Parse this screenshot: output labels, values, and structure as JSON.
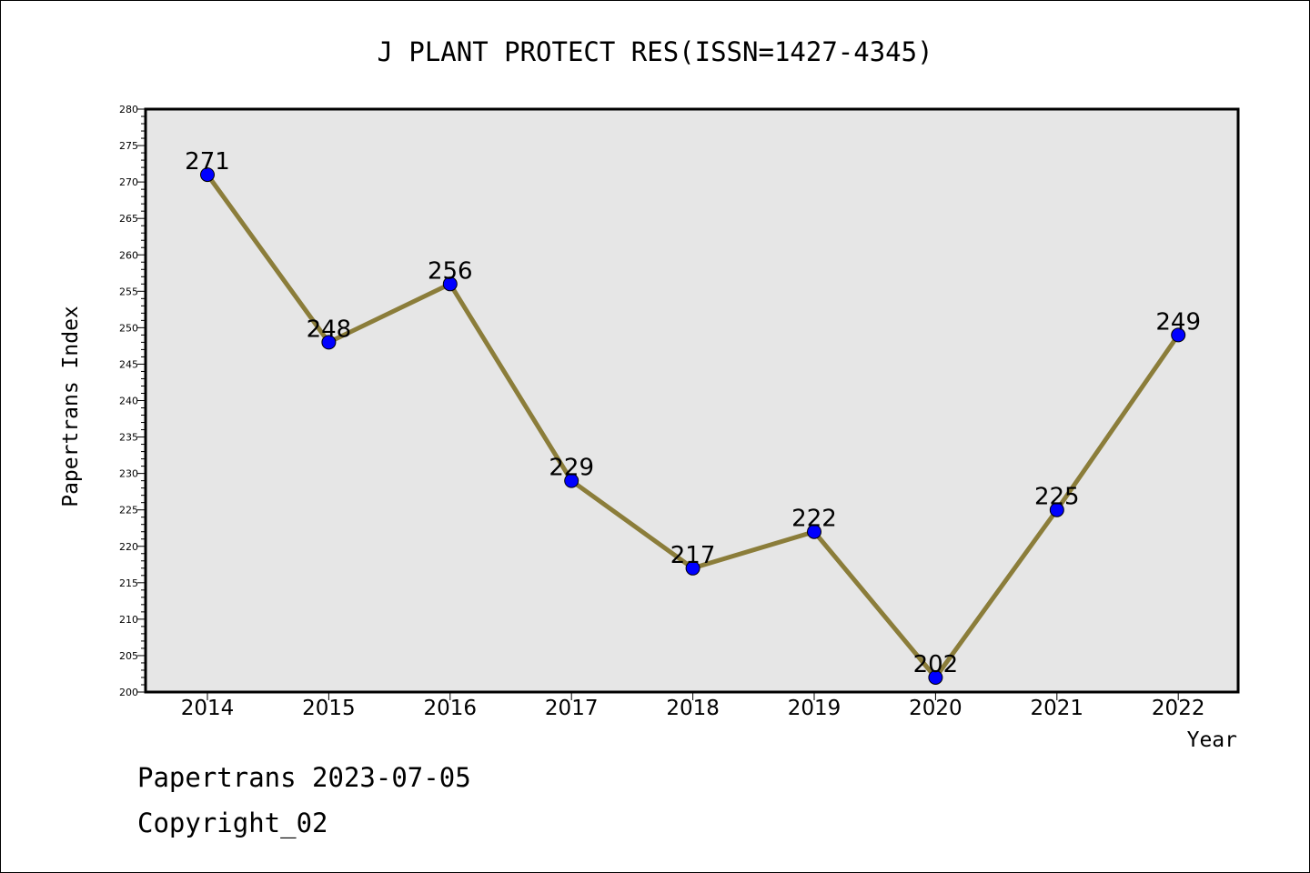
{
  "chart_data": {
    "type": "line",
    "title": "J PLANT PROTECT RES(ISSN=1427-4345)",
    "xlabel": "Year",
    "ylabel": "Papertrans Index",
    "categories": [
      "2014",
      "2015",
      "2016",
      "2017",
      "2018",
      "2019",
      "2020",
      "2021",
      "2022"
    ],
    "series": [
      {
        "values": [
          271,
          248,
          256,
          229,
          217,
          222,
          202,
          225,
          249
        ]
      }
    ],
    "data_labels": [
      "271",
      "248",
      "256",
      "229",
      "217",
      "222",
      "202",
      "225",
      "249"
    ],
    "ylim": [
      200,
      280
    ],
    "y_ticks": [
      "200",
      "205",
      "210",
      "215",
      "220",
      "225",
      "230",
      "235",
      "240",
      "245",
      "250",
      "255",
      "260",
      "265",
      "270",
      "275",
      "280"
    ],
    "grid": false,
    "legend": "none",
    "colors": {
      "line": "#8b7d3a",
      "marker": "#0000ff",
      "plot_background": "#e6e6e6"
    }
  },
  "footer": {
    "line1": "Papertrans 2023-07-05",
    "line2": "Copyright_02"
  }
}
